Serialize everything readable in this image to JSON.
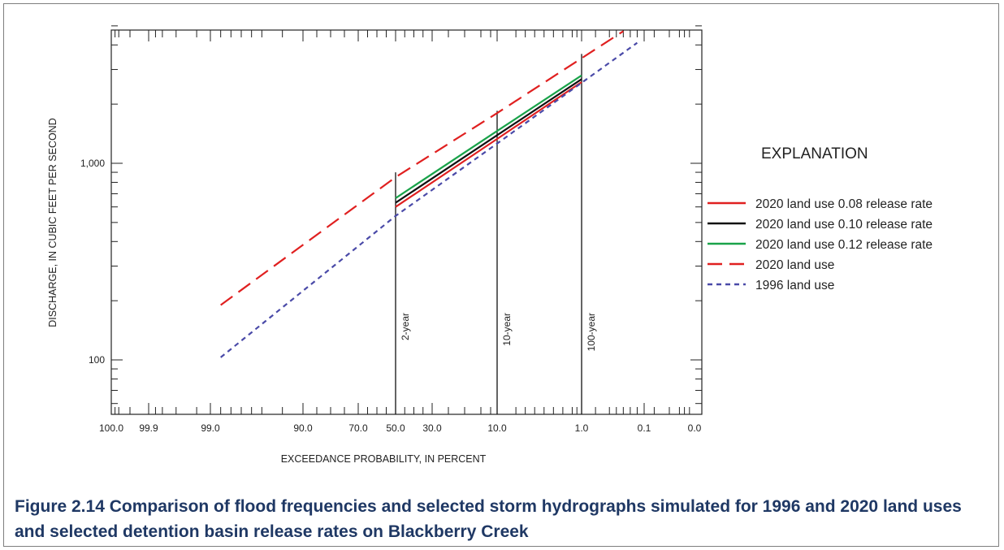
{
  "chart_data": {
    "type": "line",
    "title": "",
    "xlabel": "EXCEEDANCE PROBABILITY, IN PERCENT",
    "ylabel": "DISCHARGE, IN CUBIC FEET PER SECOND",
    "x_scale": "normal-probability (reversed)",
    "y_scale": "log",
    "ylim": [
      55,
      5500
    ],
    "x_ticks": [
      "100.0",
      "99.9",
      "99.0",
      "90.0",
      "70.0",
      "50.0",
      "30.0",
      "10.0",
      "1.0",
      "0.1",
      "0.0"
    ],
    "y_ticks": [
      "100",
      "1,000"
    ],
    "grid": false,
    "legend": {
      "title": "EXPLANATION",
      "placement": "right"
    },
    "reference_lines": [
      {
        "label": "2-year",
        "x": 50.0,
        "y_top": 900
      },
      {
        "label": "10-year",
        "x": 10.0,
        "y_top": 1850
      },
      {
        "label": "100-year",
        "x": 1.0,
        "y_top": 3600
      }
    ],
    "series": [
      {
        "name": "2020 land use 0.08 release rate",
        "color": "#e02020",
        "dash": "solid",
        "points": [
          [
            50.0,
            600
          ],
          [
            10.0,
            1330
          ],
          [
            1.0,
            2590
          ]
        ]
      },
      {
        "name": "2020 land use 0.10 release rate",
        "color": "#111111",
        "dash": "solid",
        "points": [
          [
            50.0,
            630
          ],
          [
            10.0,
            1390
          ],
          [
            1.0,
            2680
          ]
        ]
      },
      {
        "name": "2020 land use 0.12 release rate",
        "color": "#1aa34a",
        "dash": "solid",
        "points": [
          [
            50.0,
            665
          ],
          [
            10.0,
            1460
          ],
          [
            1.0,
            2800
          ]
        ]
      },
      {
        "name": "2020 land use",
        "color": "#e02020",
        "dash": "long",
        "points": [
          [
            98.0,
            190
          ],
          [
            50.0,
            850
          ],
          [
            10.0,
            1800
          ],
          [
            0.4,
            4700
          ]
        ]
      },
      {
        "name": "1996 land use",
        "color": "#4a4aa8",
        "dash": "short",
        "points": [
          [
            98.0,
            103
          ],
          [
            50.0,
            540
          ],
          [
            10.0,
            1260
          ],
          [
            0.2,
            4100
          ]
        ]
      }
    ]
  },
  "caption": "Figure 2.14 Comparison of flood frequencies and selected storm hydrographs simulated for 1996 and 2020 land uses and selected detention basin release rates on Blackberry Creek"
}
